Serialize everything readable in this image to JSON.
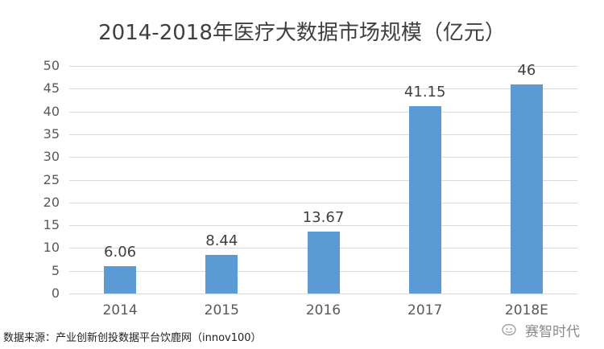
{
  "chart_data": {
    "type": "bar",
    "title": "2014-2018年医疗大数据市场规模（亿元）",
    "xlabel": "",
    "ylabel": "",
    "categories": [
      "2014",
      "2015",
      "2016",
      "2017",
      "2018E"
    ],
    "values": [
      6.06,
      8.44,
      13.67,
      41.15,
      46
    ],
    "value_labels": [
      "6.06",
      "8.44",
      "13.67",
      "41.15",
      "46"
    ],
    "ylim": [
      0,
      50
    ],
    "yticks": [
      "0",
      "5",
      "10",
      "15",
      "20",
      "25",
      "30",
      "35",
      "40",
      "45",
      "50"
    ],
    "grid": true,
    "legend": null,
    "bar_color": "#5b9bd5"
  },
  "footer": {
    "source": "数据来源：产业创新创投数据平台饮鹿网（innov100）",
    "brand": "赛智时代"
  }
}
